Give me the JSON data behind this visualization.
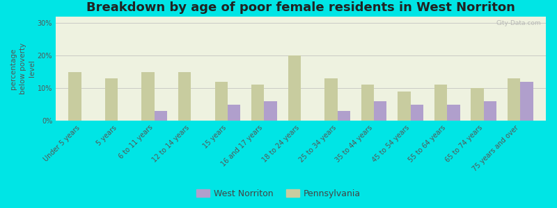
{
  "title": "Breakdown by age of poor female residents in West Norriton",
  "ylabel": "percentage\nbelow poverty\nlevel",
  "categories": [
    "Under 5 years",
    "5 years",
    "6 to 11 years",
    "12 to 14 years",
    "15 years",
    "16 and 17 years",
    "18 to 24 years",
    "25 to 34 years",
    "35 to 44 years",
    "45 to 54 years",
    "55 to 64 years",
    "65 to 74 years",
    "75 years and over"
  ],
  "west_norriton": [
    0,
    0,
    3,
    0,
    5,
    6,
    0,
    3,
    6,
    5,
    5,
    6,
    12
  ],
  "pennsylvania": [
    15,
    13,
    15,
    15,
    12,
    11,
    20,
    13,
    11,
    9,
    11,
    10,
    13
  ],
  "bar_color_wn": "#b09fcc",
  "bar_color_pa": "#c8cc9f",
  "background_color": "#00e5e5",
  "plot_bg_color": "#eef2e0",
  "ylim": [
    0,
    32
  ],
  "yticks": [
    0,
    10,
    20,
    30
  ],
  "ytick_labels": [
    "0%",
    "10%",
    "20%",
    "30%"
  ],
  "legend_wn": "West Norriton",
  "legend_pa": "Pennsylvania",
  "title_fontsize": 13,
  "axis_label_fontsize": 7.5,
  "tick_fontsize": 7,
  "bar_width": 0.35,
  "watermark": "City-Data.com"
}
